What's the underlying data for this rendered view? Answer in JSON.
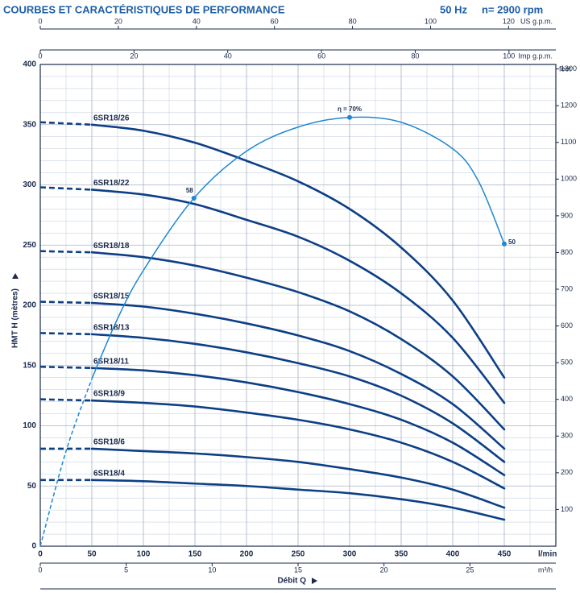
{
  "header": {
    "title": "COURBES ET CARACTÉRISTIQUES DE PERFORMANCE",
    "frequency": "50 Hz",
    "speed": "n= 2900 rpm"
  },
  "chart_data": {
    "type": "line",
    "x": [
      0,
      50,
      100,
      150,
      200,
      250,
      300,
      350,
      400,
      450
    ],
    "xlim": [
      0,
      500
    ],
    "xticks": [
      0,
      50,
      100,
      150,
      200,
      250,
      300,
      350,
      400,
      450
    ],
    "x_unit": "l/min",
    "x_title": "Débit Q",
    "ylim": [
      0,
      400
    ],
    "yticks": [
      0,
      50,
      100,
      150,
      200,
      250,
      300,
      350,
      400
    ],
    "y_label": "HMT H (mètres)",
    "y2lim": [
      0,
      1312.3
    ],
    "y2ticks": [
      100,
      200,
      300,
      400,
      500,
      600,
      700,
      800,
      900,
      1000,
      1100,
      1200,
      1300
    ],
    "y2_label": "feet",
    "grid": true,
    "series": [
      {
        "name": "6SR18/26",
        "color": "#0d3f85",
        "values": [
          352,
          350,
          345,
          335,
          320,
          303,
          280,
          248,
          204,
          140
        ]
      },
      {
        "name": "6SR18/22",
        "color": "#0d3f85",
        "values": [
          298,
          296,
          292,
          284,
          271,
          257,
          237,
          210,
          173,
          119
        ]
      },
      {
        "name": "6SR18/18",
        "color": "#0d3f85",
        "values": [
          245,
          244,
          240,
          233,
          223,
          211,
          195,
          172,
          141,
          97
        ]
      },
      {
        "name": "6SR18/15",
        "color": "#0d3f85",
        "values": [
          203,
          202,
          199,
          193,
          185,
          175,
          162,
          143,
          118,
          81
        ]
      },
      {
        "name": "6SR18/13",
        "color": "#0d3f85",
        "values": [
          177,
          176,
          173,
          168,
          161,
          152,
          141,
          125,
          102,
          70
        ]
      },
      {
        "name": "6SR18/11",
        "color": "#0d3f85",
        "values": [
          149,
          148,
          146,
          142,
          136,
          128,
          118,
          105,
          86,
          59
        ]
      },
      {
        "name": "6SR18/9",
        "color": "#0d3f85",
        "values": [
          122,
          121,
          119,
          116,
          111,
          105,
          97,
          86,
          70,
          48
        ]
      },
      {
        "name": "6SR18/6",
        "color": "#0d3f85",
        "values": [
          81,
          81,
          79,
          77,
          74,
          70,
          64,
          57,
          47,
          32
        ]
      },
      {
        "name": "6SR18/4",
        "color": "#0d3f85",
        "values": [
          55,
          55,
          54,
          52,
          50,
          47,
          44,
          39,
          32,
          22
        ]
      }
    ],
    "efficiency": {
      "color": "#1f88d0",
      "x": [
        0,
        25,
        50,
        75,
        100,
        149,
        200,
        250,
        300,
        350,
        400,
        425,
        450
      ],
      "values": [
        0,
        79,
        139,
        189,
        229,
        289,
        328,
        348,
        356,
        352,
        330,
        303,
        251
      ],
      "annotations": [
        {
          "text": "58",
          "x": 149,
          "y": 289
        },
        {
          "text": "η = 70%",
          "x": 300,
          "y": 356
        },
        {
          "text": "50",
          "x": 450,
          "y": 251
        }
      ]
    },
    "top_axes": [
      {
        "label": "US g.p.m.",
        "lim": [
          0,
          132.1
        ],
        "ticks": [
          0,
          20,
          40,
          60,
          80,
          100,
          120
        ]
      },
      {
        "label": "Imp g.p.m.",
        "lim": [
          0,
          110
        ],
        "ticks": [
          0,
          20,
          40,
          60,
          80,
          100
        ]
      }
    ],
    "bottom_axis2": {
      "label": "m³/h",
      "lim": [
        0,
        30
      ],
      "ticks": [
        0,
        5,
        10,
        15,
        20,
        25
      ]
    }
  }
}
